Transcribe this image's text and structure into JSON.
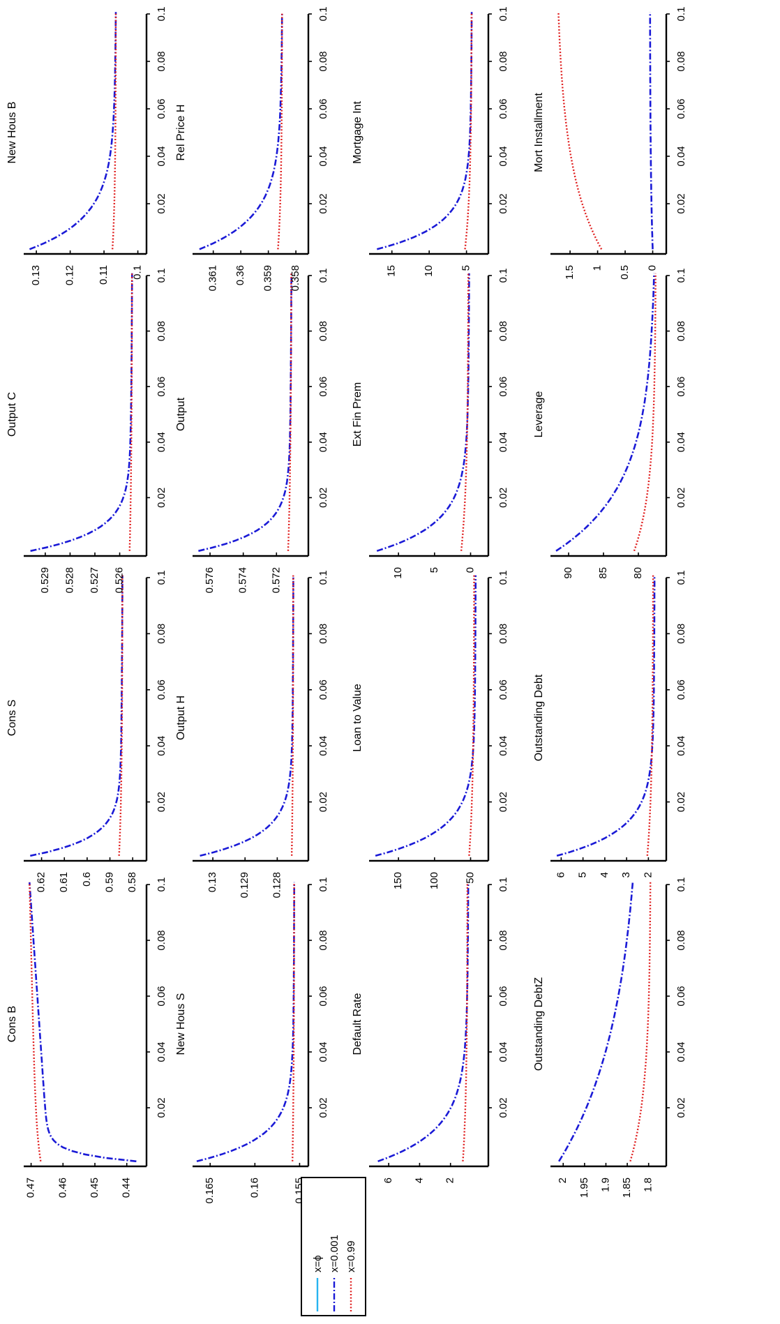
{
  "figure": {
    "legend": {
      "entries": [
        {
          "label": "x=ϕ",
          "color": "#27b3f0",
          "style": "solid"
        },
        {
          "label": "x=0.001",
          "color": "#1a1ad6",
          "style": "dashdot"
        },
        {
          "label": "x=0.99",
          "color": "#e02020",
          "style": "dotted"
        }
      ]
    }
  },
  "chart_data": [
    {
      "type": "line",
      "title": "Cons B",
      "xlim": [
        0,
        0.1
      ],
      "xticks": [
        "0.02",
        "0.04",
        "0.06",
        "0.08",
        "0.1"
      ],
      "yticks": [
        "0.44",
        "0.45",
        "0.46",
        "0.47"
      ],
      "ylim": [
        0.436,
        0.471
      ],
      "series": [
        {
          "name": "x=0.001",
          "start": 0.437,
          "end": 0.4705,
          "shape": "rise",
          "k": 350,
          "alpha": 0.18
        },
        {
          "name": "x=0.99",
          "start": 0.467,
          "end": 0.4705,
          "shape": "rise",
          "k": 80,
          "alpha": 0.6
        }
      ]
    },
    {
      "type": "line",
      "title": "New Hous  S",
      "xlim": [
        0,
        0.1
      ],
      "xticks": [
        "0.02",
        "0.04",
        "0.06",
        "0.08",
        "0.1"
      ],
      "yticks": [
        "0.155",
        "0.16",
        "0.165"
      ],
      "ylim": [
        0.1548,
        0.1665
      ],
      "series": [
        {
          "name": "x=0.001",
          "start": 0.1665,
          "end": 0.1556,
          "shape": "decay",
          "k": 120,
          "alpha": 0.02
        },
        {
          "name": "x=0.99",
          "start": 0.1558,
          "end": 0.1556,
          "shape": "decay",
          "k": 30,
          "alpha": 0
        }
      ]
    },
    {
      "type": "line",
      "title": "Default Rate",
      "xlim": [
        0,
        0.1
      ],
      "xticks": [
        "0.02",
        "0.04",
        "0.06",
        "0.08",
        "0.1"
      ],
      "yticks": [
        "2",
        "4",
        "6"
      ],
      "ylim": [
        0,
        7
      ],
      "series": [
        {
          "name": "x=0.001",
          "start": 6.7,
          "end": 0.85,
          "shape": "decay",
          "k": 90,
          "alpha": 0.03
        },
        {
          "name": "x=0.99",
          "start": 1.2,
          "end": 0.9,
          "shape": "decay",
          "k": 40,
          "alpha": 0
        }
      ]
    },
    {
      "type": "line",
      "title": "Outstanding DebtZ",
      "xlim": [
        0,
        0.1
      ],
      "xticks": [
        "0.02",
        "0.04",
        "0.06",
        "0.08",
        "0.1"
      ],
      "yticks": [
        "1.8",
        "1.85",
        "1.9",
        "1.95",
        "2"
      ],
      "ylim": [
        1.775,
        2.02
      ],
      "series": [
        {
          "name": "x=0.001",
          "start": 2.01,
          "end": 1.82,
          "shape": "decay",
          "k": 22,
          "alpha": 0.18
        },
        {
          "name": "x=0.99",
          "start": 1.843,
          "end": 1.795,
          "shape": "decay",
          "k": 40,
          "alpha": 0
        }
      ]
    },
    {
      "type": "line",
      "title": "Cons S",
      "xlim": [
        0,
        0.1
      ],
      "xticks": [
        "0.02",
        "0.04",
        "0.06",
        "0.08",
        "0.1"
      ],
      "yticks": [
        "0.58",
        "0.59",
        "0.6",
        "0.61",
        "0.62"
      ],
      "ylim": [
        0.577,
        0.626
      ],
      "series": [
        {
          "name": "x=0.001",
          "start": 0.625,
          "end": 0.5845,
          "shape": "decay",
          "k": 160,
          "alpha": 0.03
        },
        {
          "name": "x=0.99",
          "start": 0.586,
          "end": 0.5845,
          "shape": "decay",
          "k": 40,
          "alpha": 0
        }
      ]
    },
    {
      "type": "line",
      "title": "Output H",
      "xlim": [
        0,
        0.1
      ],
      "xticks": [
        "0.02",
        "0.04",
        "0.06",
        "0.08",
        "0.1"
      ],
      "yticks": [
        "0.128",
        "0.129",
        "0.13"
      ],
      "ylim": [
        0.12725,
        0.1305
      ],
      "series": [
        {
          "name": "x=0.001",
          "start": 0.1304,
          "end": 0.1275,
          "shape": "decay",
          "k": 130,
          "alpha": 0.02
        },
        {
          "name": "x=0.99",
          "start": 0.12755,
          "end": 0.1275,
          "shape": "decay",
          "k": 30,
          "alpha": 0
        }
      ]
    },
    {
      "type": "line",
      "title": "Loan to Value",
      "xlim": [
        0,
        0.1
      ],
      "xticks": [
        "0.02",
        "0.04",
        "0.06",
        "0.08",
        "0.1"
      ],
      "yticks": [
        "50",
        "100",
        "150"
      ],
      "ylim": [
        35,
        185
      ],
      "series": [
        {
          "name": "x=0.001",
          "start": 182,
          "end": 43,
          "shape": "decay",
          "k": 110,
          "alpha": 0.02
        },
        {
          "name": "x=0.99",
          "start": 52,
          "end": 45,
          "shape": "decay",
          "k": 40,
          "alpha": 0
        }
      ]
    },
    {
      "type": "line",
      "title": "Outstanding Debt",
      "xlim": [
        0,
        0.1
      ],
      "xticks": [
        "0.02",
        "0.04",
        "0.06",
        "0.08",
        "0.1"
      ],
      "yticks": [
        "2",
        "3",
        "4",
        "5",
        "6"
      ],
      "ylim": [
        1.5,
        6.3
      ],
      "series": [
        {
          "name": "x=0.001",
          "start": 6.2,
          "end": 1.72,
          "shape": "decay",
          "k": 110,
          "alpha": 0.02
        },
        {
          "name": "x=0.99",
          "start": 2.05,
          "end": 1.78,
          "shape": "decay",
          "k": 40,
          "alpha": 0
        }
      ]
    },
    {
      "type": "line",
      "title": "Output C",
      "xlim": [
        0,
        0.1
      ],
      "xticks": [
        "0.02",
        "0.04",
        "0.06",
        "0.08",
        "0.1"
      ],
      "yticks": [
        "0.526",
        "0.527",
        "0.528",
        "0.529"
      ],
      "ylim": [
        0.5252,
        0.5297
      ],
      "series": [
        {
          "name": "x=0.001",
          "start": 0.5296,
          "end": 0.5255,
          "shape": "decay",
          "k": 140,
          "alpha": 0.03
        },
        {
          "name": "x=0.99",
          "start": 0.5256,
          "end": 0.5255,
          "shape": "decay",
          "k": 30,
          "alpha": 0
        }
      ]
    },
    {
      "type": "line",
      "title": "Output",
      "xlim": [
        0,
        0.1
      ],
      "xticks": [
        "0.02",
        "0.04",
        "0.06",
        "0.08",
        "0.1"
      ],
      "yticks": [
        "0.572",
        "0.574",
        "0.576"
      ],
      "ylim": [
        0.5705,
        0.5768
      ],
      "series": [
        {
          "name": "x=0.001",
          "start": 0.5767,
          "end": 0.5711,
          "shape": "decay",
          "k": 140,
          "alpha": 0.03
        },
        {
          "name": "x=0.99",
          "start": 0.5713,
          "end": 0.5711,
          "shape": "decay",
          "k": 30,
          "alpha": 0
        }
      ]
    },
    {
      "type": "line",
      "title": "Ext Fin Prem",
      "xlim": [
        0,
        0.1
      ],
      "xticks": [
        "0.02",
        "0.04",
        "0.06",
        "0.08",
        "0.1"
      ],
      "yticks": [
        "0",
        "5",
        "10"
      ],
      "ylim": [
        -1.5,
        13.5
      ],
      "series": [
        {
          "name": "x=0.001",
          "start": 13,
          "end": 0.2,
          "shape": "decay",
          "k": 100,
          "alpha": 0.03
        },
        {
          "name": "x=0.99",
          "start": 1.3,
          "end": 0.3,
          "shape": "decay",
          "k": 40,
          "alpha": 0
        }
      ]
    },
    {
      "type": "line",
      "title": "Leverage",
      "xlim": [
        0,
        0.1
      ],
      "xticks": [
        "0.02",
        "0.04",
        "0.06",
        "0.08",
        "0.1"
      ],
      "yticks": [
        "80",
        "85",
        "90"
      ],
      "ylim": [
        77,
        92
      ],
      "series": [
        {
          "name": "x=0.001",
          "start": 91.8,
          "end": 77.6,
          "shape": "decay",
          "k": 45,
          "alpha": 0.08
        },
        {
          "name": "x=0.99",
          "start": 80.6,
          "end": 77.5,
          "shape": "decay",
          "k": 45,
          "alpha": 0
        }
      ]
    },
    {
      "type": "line",
      "title": "New Hous  B",
      "xlim": [
        0,
        0.1
      ],
      "xticks": [
        "0.02",
        "0.04",
        "0.06",
        "0.08",
        "0.1"
      ],
      "yticks": [
        "0.1",
        "0.11",
        "0.12",
        "0.13"
      ],
      "ylim": [
        0.0995,
        0.1325
      ],
      "series": [
        {
          "name": "x=0.001",
          "start": 0.132,
          "end": 0.1065,
          "shape": "decay",
          "k": 75,
          "alpha": 0.04
        },
        {
          "name": "x=0.99",
          "start": 0.1075,
          "end": 0.1065,
          "shape": "decay",
          "k": 40,
          "alpha": 0
        }
      ]
    },
    {
      "type": "line",
      "title": "Rel Price H",
      "xlim": [
        0,
        0.1
      ],
      "xticks": [
        "0.02",
        "0.04",
        "0.06",
        "0.08",
        "0.1"
      ],
      "yticks": [
        "0.358",
        "0.359",
        "0.36",
        "0.361"
      ],
      "ylim": [
        0.3578,
        0.3616
      ],
      "series": [
        {
          "name": "x=0.001",
          "start": 0.3615,
          "end": 0.3585,
          "shape": "decay",
          "k": 75,
          "alpha": 0.04
        },
        {
          "name": "x=0.99",
          "start": 0.35865,
          "end": 0.3585,
          "shape": "decay",
          "k": 40,
          "alpha": 0
        }
      ]
    },
    {
      "type": "line",
      "title": "Mortgage Int",
      "xlim": [
        0,
        0.1
      ],
      "xticks": [
        "0.02",
        "0.04",
        "0.06",
        "0.08",
        "0.1"
      ],
      "yticks": [
        "5",
        "10",
        "15"
      ],
      "ylim": [
        3,
        17.5
      ],
      "series": [
        {
          "name": "x=0.001",
          "start": 17,
          "end": 4.3,
          "shape": "decay",
          "k": 100,
          "alpha": 0.03
        },
        {
          "name": "x=0.99",
          "start": 5.2,
          "end": 4.3,
          "shape": "decay",
          "k": 40,
          "alpha": 0
        }
      ]
    },
    {
      "type": "line",
      "title": "Mort Installment",
      "xlim": [
        0,
        0.1
      ],
      "xticks": [
        "0.02",
        "0.04",
        "0.06",
        "0.08",
        "0.1"
      ],
      "yticks": [
        "0",
        "0.5",
        "1",
        "1.5"
      ],
      "ylim": [
        -0.12,
        1.78
      ],
      "series": [
        {
          "name": "x=0.001",
          "start": 0.0,
          "end": 0.05,
          "shape": "rise",
          "k": 30,
          "alpha": 0
        },
        {
          "name": "x=0.99",
          "start": 0.93,
          "end": 1.75,
          "shape": "rise",
          "k": 30,
          "alpha": 0.05
        }
      ]
    }
  ]
}
